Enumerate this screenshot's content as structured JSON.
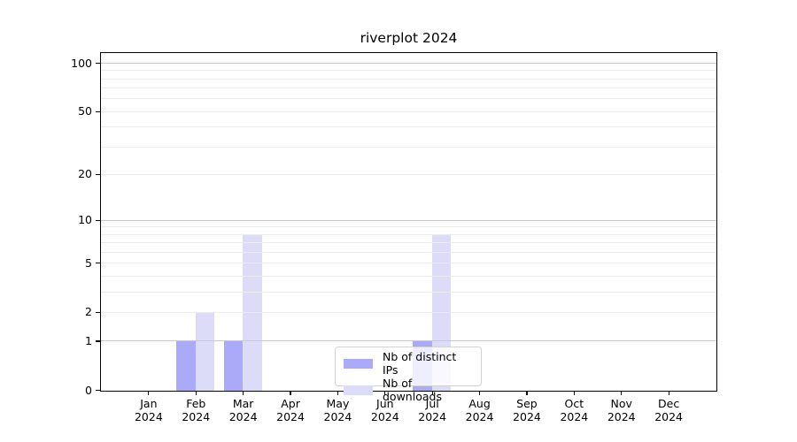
{
  "chart_data": {
    "type": "bar",
    "title": "riverplot 2024",
    "categories": [
      "Jan",
      "Feb",
      "Mar",
      "Apr",
      "May",
      "Jun",
      "Jul",
      "Aug",
      "Sep",
      "Oct",
      "Nov",
      "Dec"
    ],
    "category_year": "2024",
    "series": [
      {
        "name": "Nb of distinct IPs",
        "color": "#aaaaf8",
        "values": [
          0,
          1,
          1,
          0,
          0,
          0,
          1,
          0,
          0,
          0,
          0,
          0
        ]
      },
      {
        "name": "Nb of downloads",
        "color": "#dcdcf9",
        "values": [
          0,
          2,
          8,
          0,
          0,
          0,
          8,
          0,
          0,
          0,
          0,
          0
        ]
      }
    ],
    "y_scale": "log1p",
    "ylim": [
      0,
      115
    ],
    "y_ticks": [
      0,
      1,
      2,
      5,
      10,
      20,
      50,
      100
    ],
    "y_major_gridlines": [
      1,
      10,
      100
    ],
    "y_minor_gridlines": [
      2,
      3,
      4,
      5,
      6,
      7,
      8,
      9,
      20,
      30,
      40,
      50,
      60,
      70,
      80,
      90
    ],
    "grid": true,
    "legend_position": "lower center"
  },
  "colors": {
    "axis_spine": "#000000",
    "major_grid": "#c9c9c9",
    "minor_grid": "#ececec",
    "text": "#000000",
    "legend_border": "#d2d2d2",
    "legend_background": "rgba(255,255,255,0.8)"
  }
}
